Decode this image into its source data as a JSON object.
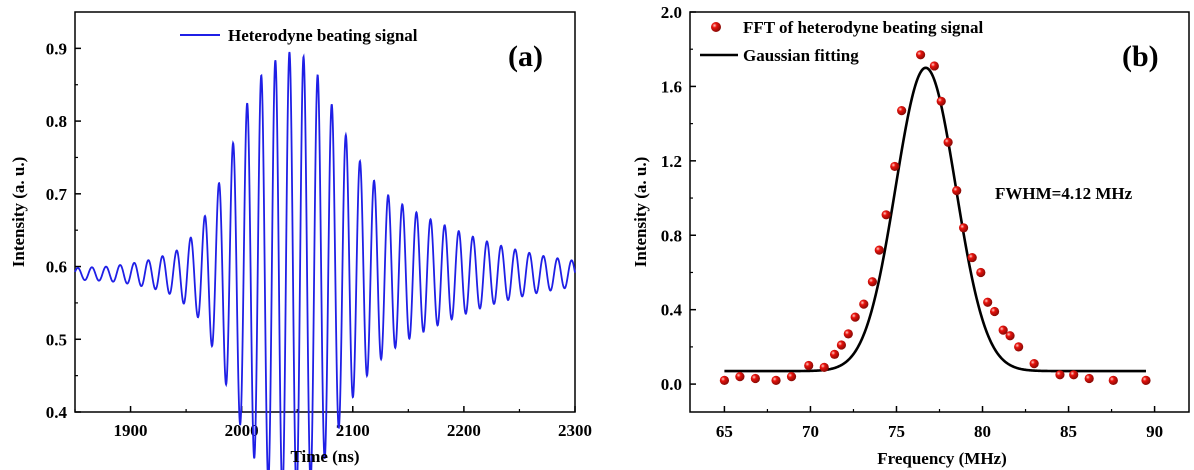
{
  "chart_data": [
    {
      "type": "line",
      "panel_label": "(a)",
      "xlabel": "Time (ns)",
      "ylabel": "Intensity (a. u.)",
      "xlim": [
        1850,
        2300
      ],
      "ylim": [
        0.4,
        0.95
      ],
      "xticks": [
        1900,
        2000,
        2100,
        2200,
        2300
      ],
      "yticks": [
        0.4,
        0.5,
        0.6,
        0.7,
        0.8,
        0.9
      ],
      "color": "#1f1fe6",
      "legend": "top-center",
      "series": [
        {
          "name": "Heterodyne beating signal",
          "baseline": 0.59,
          "period": 12.7,
          "peak_time": 2043,
          "peak_amplitude": 0.305,
          "envelope_points": [
            [
              1850,
              0.008
            ],
            [
              1880,
              0.01
            ],
            [
              1900,
              0.014
            ],
            [
              1920,
              0.02
            ],
            [
              1940,
              0.03
            ],
            [
              1960,
              0.058
            ],
            [
              1975,
              0.105
            ],
            [
              1990,
              0.17
            ],
            [
              2005,
              0.235
            ],
            [
              2020,
              0.28
            ],
            [
              2035,
              0.3
            ],
            [
              2043,
              0.305
            ],
            [
              2055,
              0.3
            ],
            [
              2070,
              0.27
            ],
            [
              2085,
              0.22
            ],
            [
              2100,
              0.17
            ],
            [
              2115,
              0.135
            ],
            [
              2130,
              0.11
            ],
            [
              2150,
              0.09
            ],
            [
              2170,
              0.075
            ],
            [
              2190,
              0.062
            ],
            [
              2210,
              0.05
            ],
            [
              2230,
              0.04
            ],
            [
              2250,
              0.032
            ],
            [
              2270,
              0.025
            ],
            [
              2290,
              0.02
            ],
            [
              2300,
              0.018
            ]
          ]
        }
      ]
    },
    {
      "type": "scatter",
      "panel_label": "(b)",
      "xlabel": "Frequency (MHz)",
      "ylabel": "Intensity (a. u.)",
      "xlim": [
        63,
        92
      ],
      "ylim": [
        -0.15,
        2.0
      ],
      "xticks": [
        65,
        70,
        75,
        80,
        85,
        90
      ],
      "yticks": [
        0.0,
        0.4,
        0.8,
        1.2,
        1.6,
        2.0
      ],
      "ytick_labels": [
        "0.0",
        "0.4",
        "0.8",
        "1.2",
        "1.6",
        "2.0"
      ],
      "annotation": "FWHM=4.12 MHz",
      "legend": "top-left",
      "series": [
        {
          "name": "FFT of heterodyne beating signal",
          "color": "#e8120c",
          "points": [
            [
              65.0,
              0.02
            ],
            [
              65.9,
              0.04
            ],
            [
              66.8,
              0.03
            ],
            [
              68.0,
              0.02
            ],
            [
              68.9,
              0.04
            ],
            [
              69.9,
              0.1
            ],
            [
              70.8,
              0.09
            ],
            [
              71.4,
              0.16
            ],
            [
              71.8,
              0.21
            ],
            [
              72.2,
              0.27
            ],
            [
              72.6,
              0.36
            ],
            [
              73.1,
              0.43
            ],
            [
              73.6,
              0.55
            ],
            [
              74.0,
              0.72
            ],
            [
              74.4,
              0.91
            ],
            [
              74.9,
              1.17
            ],
            [
              75.3,
              1.47
            ],
            [
              76.4,
              1.77
            ],
            [
              77.2,
              1.71
            ],
            [
              77.6,
              1.52
            ],
            [
              78.0,
              1.3
            ],
            [
              78.5,
              1.04
            ],
            [
              78.9,
              0.84
            ],
            [
              79.4,
              0.68
            ],
            [
              79.9,
              0.6
            ],
            [
              80.3,
              0.44
            ],
            [
              80.7,
              0.39
            ],
            [
              81.2,
              0.29
            ],
            [
              81.6,
              0.26
            ],
            [
              82.1,
              0.2
            ],
            [
              83.0,
              0.11
            ],
            [
              84.5,
              0.05
            ],
            [
              85.3,
              0.05
            ],
            [
              86.2,
              0.03
            ],
            [
              87.6,
              0.02
            ],
            [
              89.5,
              0.02
            ]
          ]
        },
        {
          "name": "Gaussian fitting",
          "color": "#000000",
          "fit": {
            "offset": 0.07,
            "amplitude": 1.63,
            "center": 76.7,
            "fwhm": 4.12,
            "x_range": [
              65,
              89.5
            ]
          }
        }
      ]
    }
  ]
}
